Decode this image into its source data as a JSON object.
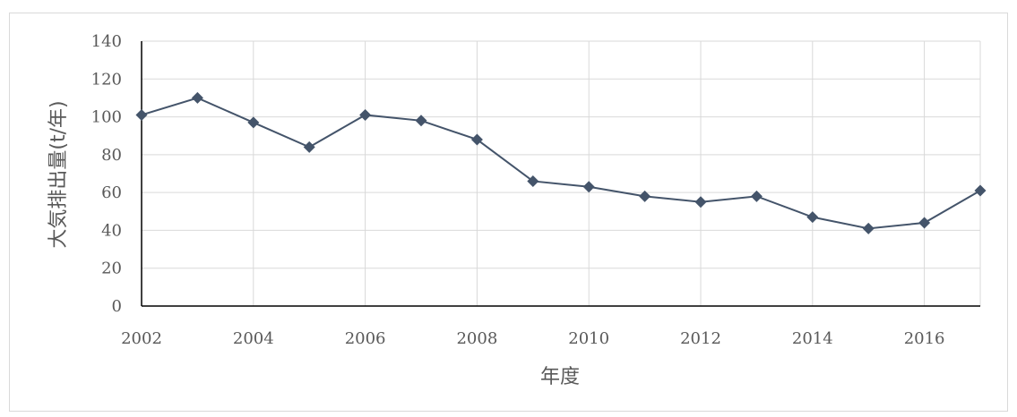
{
  "chart_data": {
    "type": "line",
    "title": "",
    "xlabel": "年度",
    "ylabel": "大気排出量(t/年)",
    "xlim": [
      2002,
      2017
    ],
    "ylim": [
      0,
      140
    ],
    "x_ticks": [
      "2002",
      "2004",
      "2006",
      "2008",
      "2010",
      "2012",
      "2014",
      "2016"
    ],
    "y_ticks": [
      "0",
      "20",
      "40",
      "60",
      "80",
      "100",
      "120",
      "140"
    ],
    "grid": true,
    "legend": "none",
    "marker": "diamond",
    "color": "#44546a",
    "x": [
      2002,
      2003,
      2004,
      2005,
      2006,
      2007,
      2008,
      2009,
      2010,
      2011,
      2012,
      2013,
      2014,
      2015,
      2016,
      2017
    ],
    "series": [
      {
        "values": [
          101,
          110,
          97,
          84,
          101,
          98,
          88,
          66,
          63,
          58,
          55,
          58,
          47,
          41,
          44,
          61
        ]
      }
    ]
  }
}
